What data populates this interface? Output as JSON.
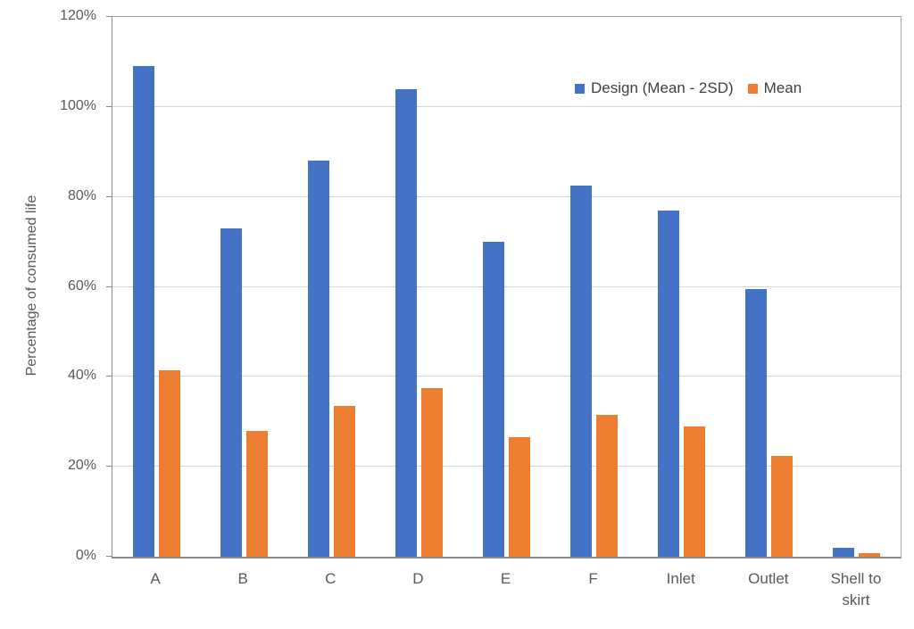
{
  "chart_data": {
    "type": "bar",
    "title": "",
    "categories": [
      "A",
      "B",
      "C",
      "D",
      "E",
      "F",
      "Inlet",
      "Outlet",
      "Shell to skirt"
    ],
    "series": [
      {
        "name": "Design (Mean - 2SD)",
        "color": "#4472C4",
        "values": [
          109,
          73,
          88,
          104,
          70,
          82.5,
          77,
          59.5,
          2
        ]
      },
      {
        "name": "Mean",
        "color": "#ED7D31",
        "values": [
          41.5,
          28,
          33.5,
          37.5,
          26.5,
          31.5,
          29,
          22.5,
          0.7
        ]
      }
    ],
    "xlabel": "",
    "ylabel": "Percentage of consumed life",
    "ylim": [
      0,
      120
    ],
    "ytick_step": 20,
    "ytick_labels": [
      "0%",
      "20%",
      "40%",
      "60%",
      "80%",
      "100%",
      "120%"
    ],
    "grid": true,
    "legend_position": "inside-top-right",
    "colors": {
      "axis_text": "#595959",
      "legend_text": "#404040",
      "gridline": "#d6d6d6",
      "axis_line": "#898989",
      "plot_border": "#a6a6a6",
      "background": "#ffffff"
    }
  }
}
